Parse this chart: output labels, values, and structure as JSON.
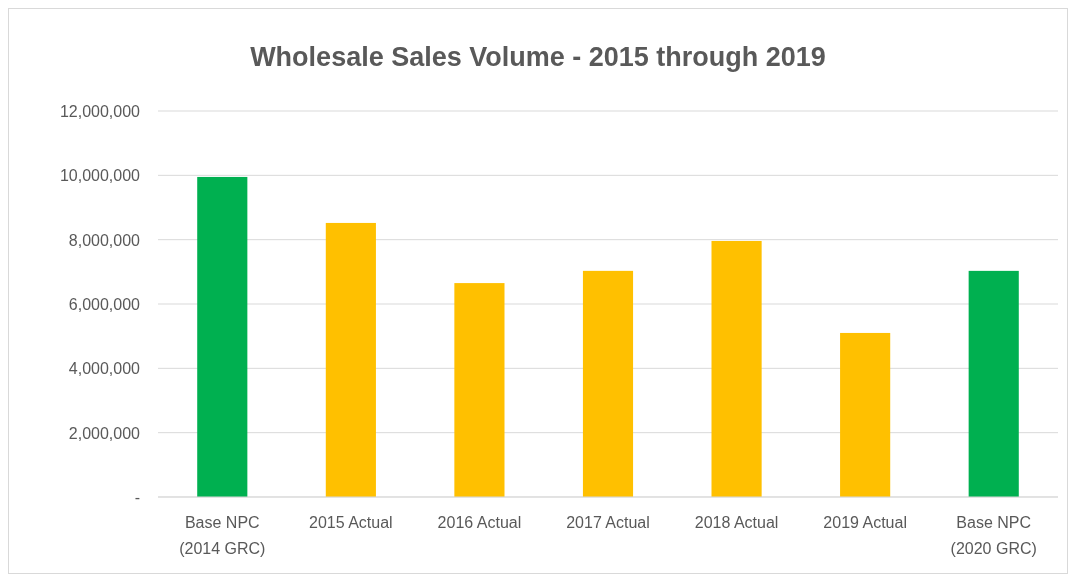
{
  "chart_data": {
    "type": "bar",
    "title": "Wholesale Sales Volume - 2015 through 2019",
    "categories": [
      "Base NPC\n(2014 GRC)",
      "2015 Actual",
      "2016 Actual",
      "2017 Actual",
      "2018 Actual",
      "2019 Actual",
      "Base NPC\n(2020 GRC)"
    ],
    "values": [
      9950000,
      8520000,
      6650000,
      7030000,
      7960000,
      5100000,
      7030000
    ],
    "colors": [
      "#00b050",
      "#ffc000",
      "#ffc000",
      "#ffc000",
      "#ffc000",
      "#ffc000",
      "#00b050"
    ],
    "ylim": [
      0,
      12000000
    ],
    "yticks": [
      {
        "value": 0,
        "label": "-"
      },
      {
        "value": 2000000,
        "label": "2,000,000"
      },
      {
        "value": 4000000,
        "label": "4,000,000"
      },
      {
        "value": 6000000,
        "label": "6,000,000"
      },
      {
        "value": 8000000,
        "label": "8,000,000"
      },
      {
        "value": 10000000,
        "label": "10,000,000"
      },
      {
        "value": 12000000,
        "label": "12,000,000"
      }
    ],
    "grid": "y"
  }
}
